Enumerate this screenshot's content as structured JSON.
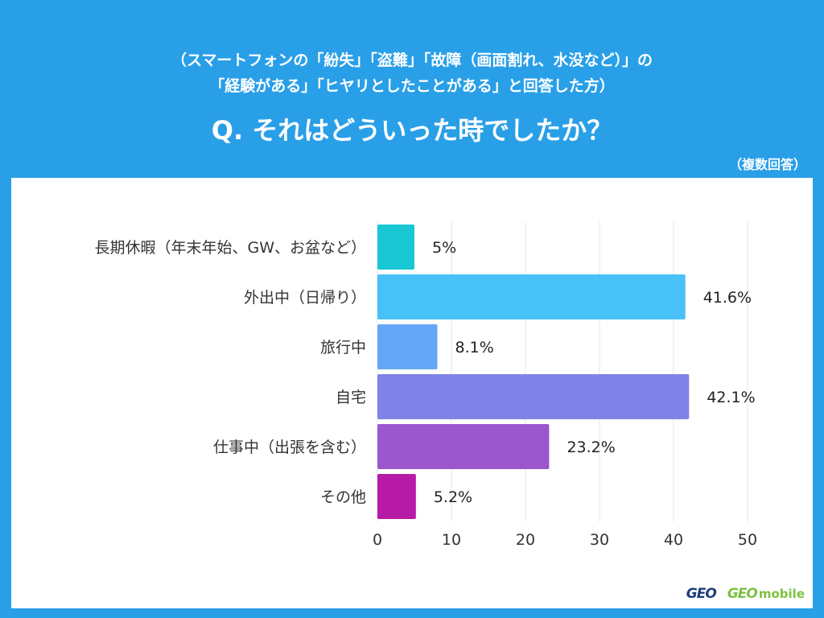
{
  "header": {
    "subtitle_line1": "（スマートフォンの「紛失」「盗難」「故障（画面割れ、水没など）」の",
    "subtitle_line2": "「経験がある」「ヒヤリとしたことがある」と回答した方）",
    "question": "Q. それはどういった時でしたか？",
    "note": "（複数回答）"
  },
  "logos": {
    "geo": "GEO",
    "geo_mobile": "GEO",
    "geo_mobile_suffix": "mobile"
  },
  "colors": {
    "background": "#299fe8",
    "grid": "#e6e6e6"
  },
  "chart_data": {
    "type": "bar",
    "orientation": "horizontal",
    "categories": [
      "長期休暇（年末年始、GW、お盆など）",
      "外出中（日帰り）",
      "旅行中",
      "自宅",
      "仕事中（出張を含む）",
      "その他"
    ],
    "values": [
      5,
      41.6,
      8.1,
      42.1,
      23.2,
      5.2
    ],
    "value_labels": [
      "5%",
      "41.6%",
      "8.1%",
      "42.1%",
      "23.2%",
      "5.2%"
    ],
    "bar_colors": [
      "#18c6d4",
      "#48c1f7",
      "#65a7f7",
      "#7f82e6",
      "#9b57cd",
      "#b71aa6"
    ],
    "xlim": [
      0,
      50
    ],
    "xticks": [
      0,
      10,
      20,
      30,
      40,
      50
    ],
    "grid": true,
    "legend": "none"
  }
}
